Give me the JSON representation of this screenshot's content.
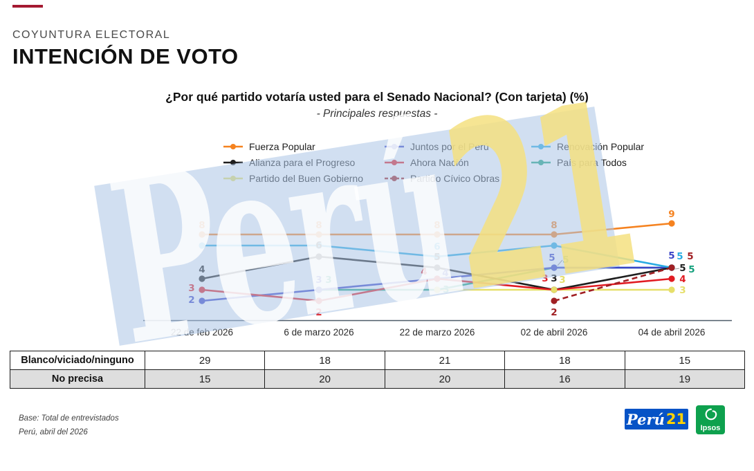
{
  "header": {
    "kicker": "COYUNTURA ELECTORAL",
    "title": "INTENCIÓN DE VOTO"
  },
  "chart_data": {
    "type": "line",
    "title": "¿Por qué partido votaría usted para el Senado Nacional? (Con tarjeta) (%)",
    "subtitle": "- Principales respuestas -",
    "x_labels": [
      "22 de feb 2026",
      "6 de marzo 2026",
      "22 de marzo 2026",
      "02 de abril 2026",
      "04 de abril 2026"
    ],
    "ylim": [
      0,
      10
    ],
    "y_axis_hidden": true,
    "grid": false,
    "legend_position": "top",
    "series": [
      {
        "id": "fuerza_popular",
        "name": "Fuerza Popular",
        "color": "#F5821F",
        "dashed": false,
        "values": [
          8,
          8,
          8,
          8,
          9
        ],
        "point_labels": [
          "8",
          "8",
          "8",
          "8",
          "9"
        ]
      },
      {
        "id": "juntos_por_el_peru",
        "name": "Juntos por el Perú",
        "color": "#3944C7",
        "dashed": false,
        "values": [
          2,
          3,
          4,
          5,
          5
        ],
        "point_labels": [
          "2",
          "3",
          "4",
          "5",
          "5"
        ]
      },
      {
        "id": "renovacion_popular",
        "name": "Renovación Popular",
        "color": "#29ABE2",
        "dashed": false,
        "values": [
          7,
          7,
          6,
          7,
          5
        ],
        "point_labels": [
          null,
          null,
          "6",
          null,
          "5"
        ]
      },
      {
        "id": "alianza_para_el_progreso",
        "name": "Alianza para el Progreso",
        "color": "#1E1E1E",
        "dashed": false,
        "values": [
          4,
          6,
          5,
          3,
          5
        ],
        "point_labels": [
          "4",
          "6",
          "5",
          "3",
          "5"
        ]
      },
      {
        "id": "ahora_nacion",
        "name": "Ahora Nación",
        "color": "#E11B22",
        "dashed": false,
        "values": [
          3,
          2,
          4,
          3,
          4
        ],
        "point_labels": [
          "3",
          "2",
          "4",
          "3",
          "4"
        ]
      },
      {
        "id": "pais_para_todos",
        "name": "País para Todos",
        "color": "#14A07C",
        "dashed": false,
        "values": [
          null,
          3,
          3,
          5,
          5
        ],
        "point_labels": [
          null,
          "3",
          "3",
          "5",
          "5"
        ]
      },
      {
        "id": "partido_del_buen_gobierno",
        "name": "Partido del Buen Gobierno",
        "color": "#E6DF6A",
        "dashed": false,
        "values": [
          null,
          null,
          3,
          3,
          3
        ],
        "point_labels": [
          null,
          null,
          null,
          "3",
          "3"
        ]
      },
      {
        "id": "partido_civico_obras",
        "name": "Partido Cívico Obras",
        "color": "#A01F23",
        "dashed": true,
        "values": [
          null,
          null,
          null,
          2,
          5
        ],
        "point_labels": [
          null,
          null,
          null,
          "2",
          "5"
        ]
      }
    ],
    "table": {
      "rows": [
        {
          "label": "Blanco/viciado/ninguno",
          "values": [
            29,
            18,
            21,
            18,
            15
          ]
        },
        {
          "label": "No precisa",
          "values": [
            15,
            20,
            20,
            16,
            19
          ]
        }
      ]
    }
  },
  "legend": {
    "columns": [
      [
        "fuerza_popular",
        "alianza_para_el_progreso",
        "partido_del_buen_gobierno"
      ],
      [
        "juntos_por_el_peru",
        "ahora_nacion",
        "partido_civico_obras"
      ],
      [
        "renovacion_popular",
        "pais_para_todos"
      ]
    ]
  },
  "watermark": {
    "text_primary": "Perú",
    "text_secondary": "21"
  },
  "footer": {
    "base_line1": "Base: Total de entrevistados",
    "base_line2": "Perú, abril del 2026"
  },
  "logos": {
    "peru21": {
      "text_primary": "Perú",
      "text_secondary": "21",
      "bg": "#0653C6"
    },
    "ipsos": {
      "label": "Ipsos",
      "bg": "#0EA14E"
    }
  },
  "accents": {
    "top_bar": "#A41931"
  }
}
